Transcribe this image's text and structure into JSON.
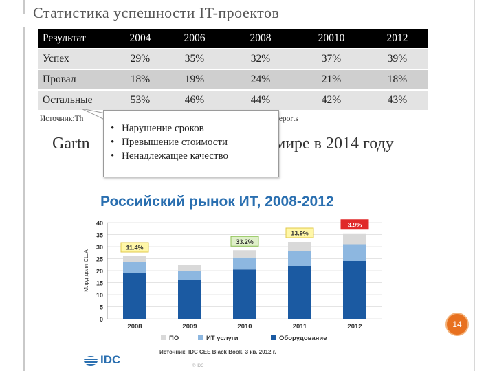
{
  "title": "Статистика успешности IT-проектов",
  "table": {
    "headers": [
      "Результат",
      "2004",
      "2006",
      "2008",
      "20010",
      "2012"
    ],
    "rows": [
      {
        "label": "Успех",
        "values": [
          "29%",
          "35%",
          "32%",
          "37%",
          "39%"
        ]
      },
      {
        "label": "Провал",
        "values": [
          "18%",
          "19%",
          "24%",
          "21%",
          "18%"
        ]
      },
      {
        "label": "Остальные",
        "values": [
          "53%",
          "46%",
          "44%",
          "42%",
          "43%"
        ]
      }
    ]
  },
  "source_start": "Источник:Th",
  "source_end": "reports",
  "gartner_start": "Gartn",
  "gartner_end": "мире в 2014 году",
  "callout": {
    "items": [
      "Нарушение сроков",
      "Превышение стоимости",
      "Ненадлежащее качество"
    ]
  },
  "chart_title": "Российский рынок ИТ, 2008-2012",
  "colors": {
    "po": "#d9d9d9",
    "it": "#8db7e0",
    "hw": "#1b5aa2",
    "badge_red": "#e02a2a",
    "badge_green": "#dff0c9",
    "badge_yellow": "#fff7a8",
    "accent": "#2a6fb0"
  },
  "chart_data": {
    "type": "bar",
    "stacked": true,
    "categories": [
      "2008",
      "2009",
      "2010",
      "2011",
      "2012"
    ],
    "series": [
      {
        "name": "Оборудование",
        "values": [
          19,
          16,
          20.5,
          22,
          24
        ]
      },
      {
        "name": "ИТ услуги",
        "values": [
          4.5,
          4,
          5,
          6,
          7
        ]
      },
      {
        "name": "ПО",
        "values": [
          2.5,
          2.5,
          3,
          4,
          4.5
        ]
      }
    ],
    "annotations": [
      {
        "category": "2008",
        "text": "11.4%",
        "style": "yellow"
      },
      {
        "category": "2010",
        "text": "33.2%",
        "style": "green"
      },
      {
        "category": "2011",
        "text": "13.9%",
        "style": "yellow"
      },
      {
        "category": "2012",
        "text": "3.9%",
        "style": "red"
      }
    ],
    "ylabel": "Млрд долл США",
    "ylim": [
      0,
      40
    ],
    "yticks": [
      "0",
      "5",
      "10",
      "15",
      "20",
      "25",
      "30",
      "35",
      "40"
    ],
    "legend": [
      "ПО",
      "ИТ услуги",
      "Оборудование"
    ],
    "legend_position": "bottom",
    "grid": true
  },
  "chart_source": "Источник: IDC CEE Black Book, 3 кв. 2012 г.",
  "chart_footnote": "© IDC",
  "logo": "IDC",
  "page_number": "14"
}
